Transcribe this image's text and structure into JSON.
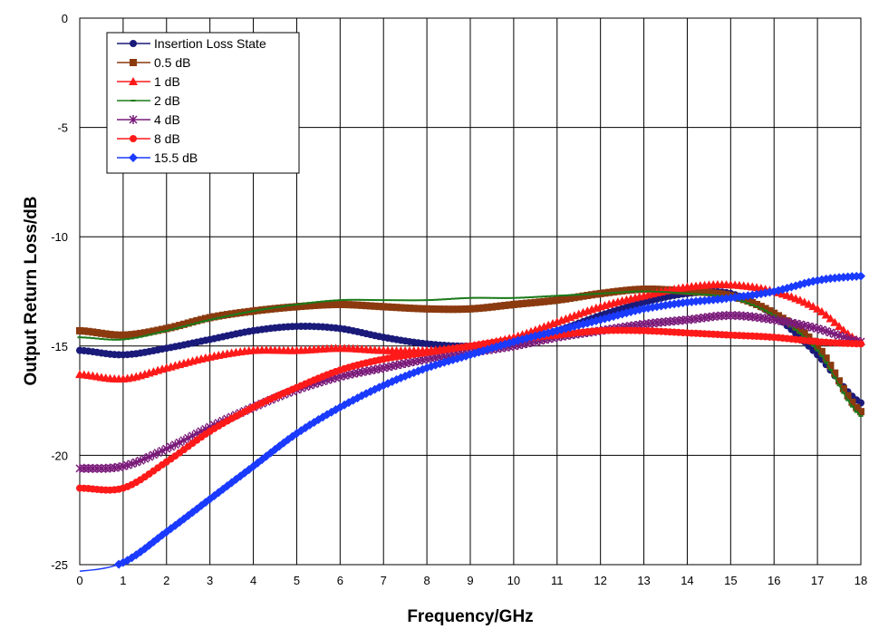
{
  "chart_data": {
    "type": "line",
    "xlabel": "Frequency/GHz",
    "ylabel": "Output Return Loss/dB",
    "xlim": [
      0,
      18
    ],
    "ylim": [
      -25,
      0
    ],
    "xticks": [
      "0",
      "1",
      "2",
      "3",
      "4",
      "5",
      "6",
      "7",
      "8",
      "9",
      "10",
      "11",
      "12",
      "13",
      "14",
      "15",
      "16",
      "17",
      "18"
    ],
    "yticks": [
      "0",
      "-5",
      "-10",
      "-15",
      "-20",
      "-25"
    ],
    "grid": true,
    "legend_position": "top-left",
    "x": [
      0,
      1,
      2,
      3,
      4,
      5,
      6,
      7,
      8,
      9,
      10,
      11,
      12,
      13,
      14,
      15,
      16,
      17,
      18
    ],
    "series": [
      {
        "name": "Insertion Loss State",
        "color": "#1a1a7a",
        "marker": "circle",
        "values": [
          -15.2,
          -15.4,
          -15.1,
          -14.7,
          -14.3,
          -14.1,
          -14.2,
          -14.6,
          -14.9,
          -15.0,
          -14.8,
          -14.3,
          -13.6,
          -13.0,
          -12.6,
          -12.6,
          -13.6,
          -15.4,
          -17.6
        ]
      },
      {
        "name": "0.5 dB",
        "color": "#8b3a0f",
        "marker": "square",
        "values": [
          -14.3,
          -14.5,
          -14.2,
          -13.7,
          -13.4,
          -13.2,
          -13.1,
          -13.2,
          -13.3,
          -13.3,
          -13.1,
          -12.9,
          -12.6,
          -12.4,
          -12.5,
          -12.7,
          -13.5,
          -15.0,
          -18.0
        ]
      },
      {
        "name": "1 dB",
        "color": "#ff1a1a",
        "marker": "triangle",
        "values": [
          -16.3,
          -16.5,
          -16.0,
          -15.5,
          -15.2,
          -15.2,
          -15.1,
          -15.2,
          -15.2,
          -15.0,
          -14.6,
          -13.9,
          -13.2,
          -12.7,
          -12.3,
          -12.2,
          -12.5,
          -13.3,
          -14.8
        ]
      },
      {
        "name": "2 dB",
        "color": "#1a7a1a",
        "marker": "dash",
        "values": [
          -14.6,
          -14.7,
          -14.3,
          -13.8,
          -13.4,
          -13.1,
          -12.9,
          -12.9,
          -12.9,
          -12.8,
          -12.8,
          -12.7,
          -12.6,
          -12.5,
          -12.6,
          -12.8,
          -13.6,
          -15.2,
          -18.2
        ]
      },
      {
        "name": "4 dB",
        "color": "#7a1a7a",
        "marker": "star",
        "values": [
          -20.6,
          -20.5,
          -19.7,
          -18.7,
          -17.8,
          -17.0,
          -16.4,
          -16.0,
          -15.6,
          -15.3,
          -15.0,
          -14.6,
          -14.3,
          -14.0,
          -13.8,
          -13.6,
          -13.8,
          -14.2,
          -14.8
        ]
      },
      {
        "name": "8 dB",
        "color": "#ff1a1a",
        "marker": "circle",
        "values": [
          -21.5,
          -21.5,
          -20.3,
          -18.9,
          -17.8,
          -16.9,
          -16.1,
          -15.6,
          -15.3,
          -15.0,
          -14.7,
          -14.5,
          -14.3,
          -14.3,
          -14.4,
          -14.5,
          -14.6,
          -14.8,
          -14.9
        ]
      },
      {
        "name": "15.5 dB",
        "color": "#1a3aff",
        "marker": "diamond",
        "values": [
          -25.3,
          -24.9,
          -23.5,
          -22.0,
          -20.5,
          -19.0,
          -17.8,
          -16.8,
          -16.0,
          -15.4,
          -14.8,
          -14.3,
          -13.8,
          -13.3,
          -13.0,
          -12.8,
          -12.5,
          -12.0,
          -11.8
        ]
      }
    ]
  }
}
